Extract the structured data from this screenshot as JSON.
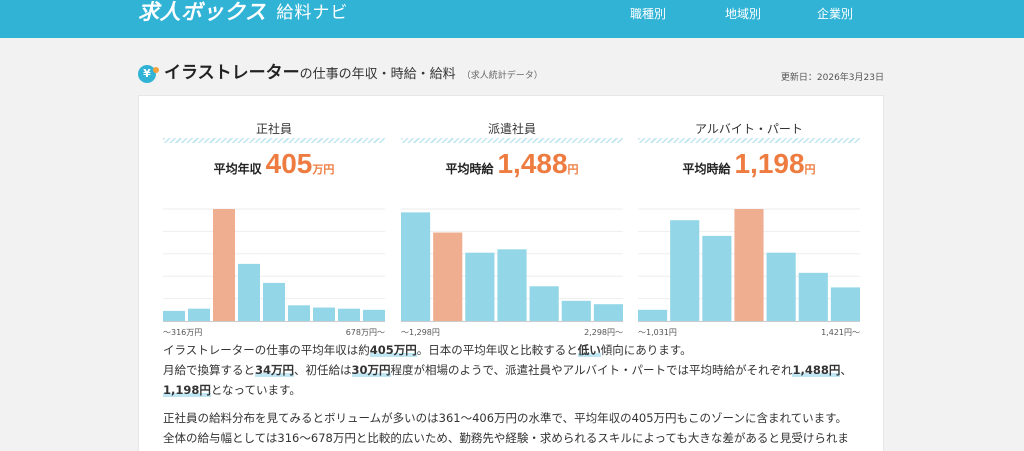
{
  "header": {
    "logo_main": "求人ボックス",
    "logo_sub": "給料ナビ",
    "nav": [
      "職種別",
      "地域別",
      "企業別"
    ]
  },
  "title": {
    "job": "イラストレーター",
    "suffix": "の仕事の年収・時給・給料",
    "note": "（求人統計データ）",
    "updated": "更新日：2026年3月23日"
  },
  "columns": [
    {
      "title": "正社員",
      "avg_label": "平均年収",
      "avg_value": "405",
      "avg_unit": "万円",
      "axis_left": "〜316万円",
      "axis_right": "678万円〜",
      "bars": [
        0.09,
        0.11,
        1.0,
        0.51,
        0.34,
        0.14,
        0.12,
        0.11,
        0.1
      ],
      "highlight_index": 2
    },
    {
      "title": "派遣社員",
      "avg_label": "平均時給",
      "avg_value": "1,488",
      "avg_unit": "円",
      "axis_left": "〜1,298円",
      "axis_right": "2,298円〜",
      "bars": [
        0.97,
        0.79,
        0.61,
        0.64,
        0.31,
        0.18,
        0.15
      ],
      "highlight_index": 1
    },
    {
      "title": "アルバイト・パート",
      "avg_label": "平均時給",
      "avg_value": "1,198",
      "avg_unit": "円",
      "axis_left": "〜1,031円",
      "axis_right": "1,421円〜",
      "bars": [
        0.1,
        0.9,
        0.76,
        1.0,
        0.61,
        0.43,
        0.3
      ],
      "highlight_index": 3
    }
  ],
  "description": {
    "p1_a": "イラストレーターの仕事の平均年収は約",
    "p1_b": "405万円",
    "p1_c": "。日本の平均年収と比較すると",
    "p1_d": "低い",
    "p1_e": "傾向にあります。",
    "p1_f": "月給で換算すると",
    "p1_g": "34万円",
    "p1_h": "、初任給は",
    "p1_i": "30万円",
    "p1_j": "程度が相場のようで、派遣社員やアルバイト・パートでは平均時給がそれぞれ",
    "p1_k": "1,488円",
    "p1_l": "、",
    "p1_m": "1,198円",
    "p1_n": "となっています。",
    "p2_a": "正社員の給料分布を見てみるとボリュームが多いのは361〜406万円の水準で、平均年収の405万円もこのゾーンに含まれています。",
    "p2_b": "全体の給与幅としては316〜678万円と比較的広いため、勤務先や経験・求められるスキルによっても大きな差があると見受けられま"
  },
  "colors": {
    "header": "#31b3d6",
    "bar": "#92d6e8",
    "bar_highlight": "#f0ae90",
    "accent": "#ee7b3f"
  }
}
